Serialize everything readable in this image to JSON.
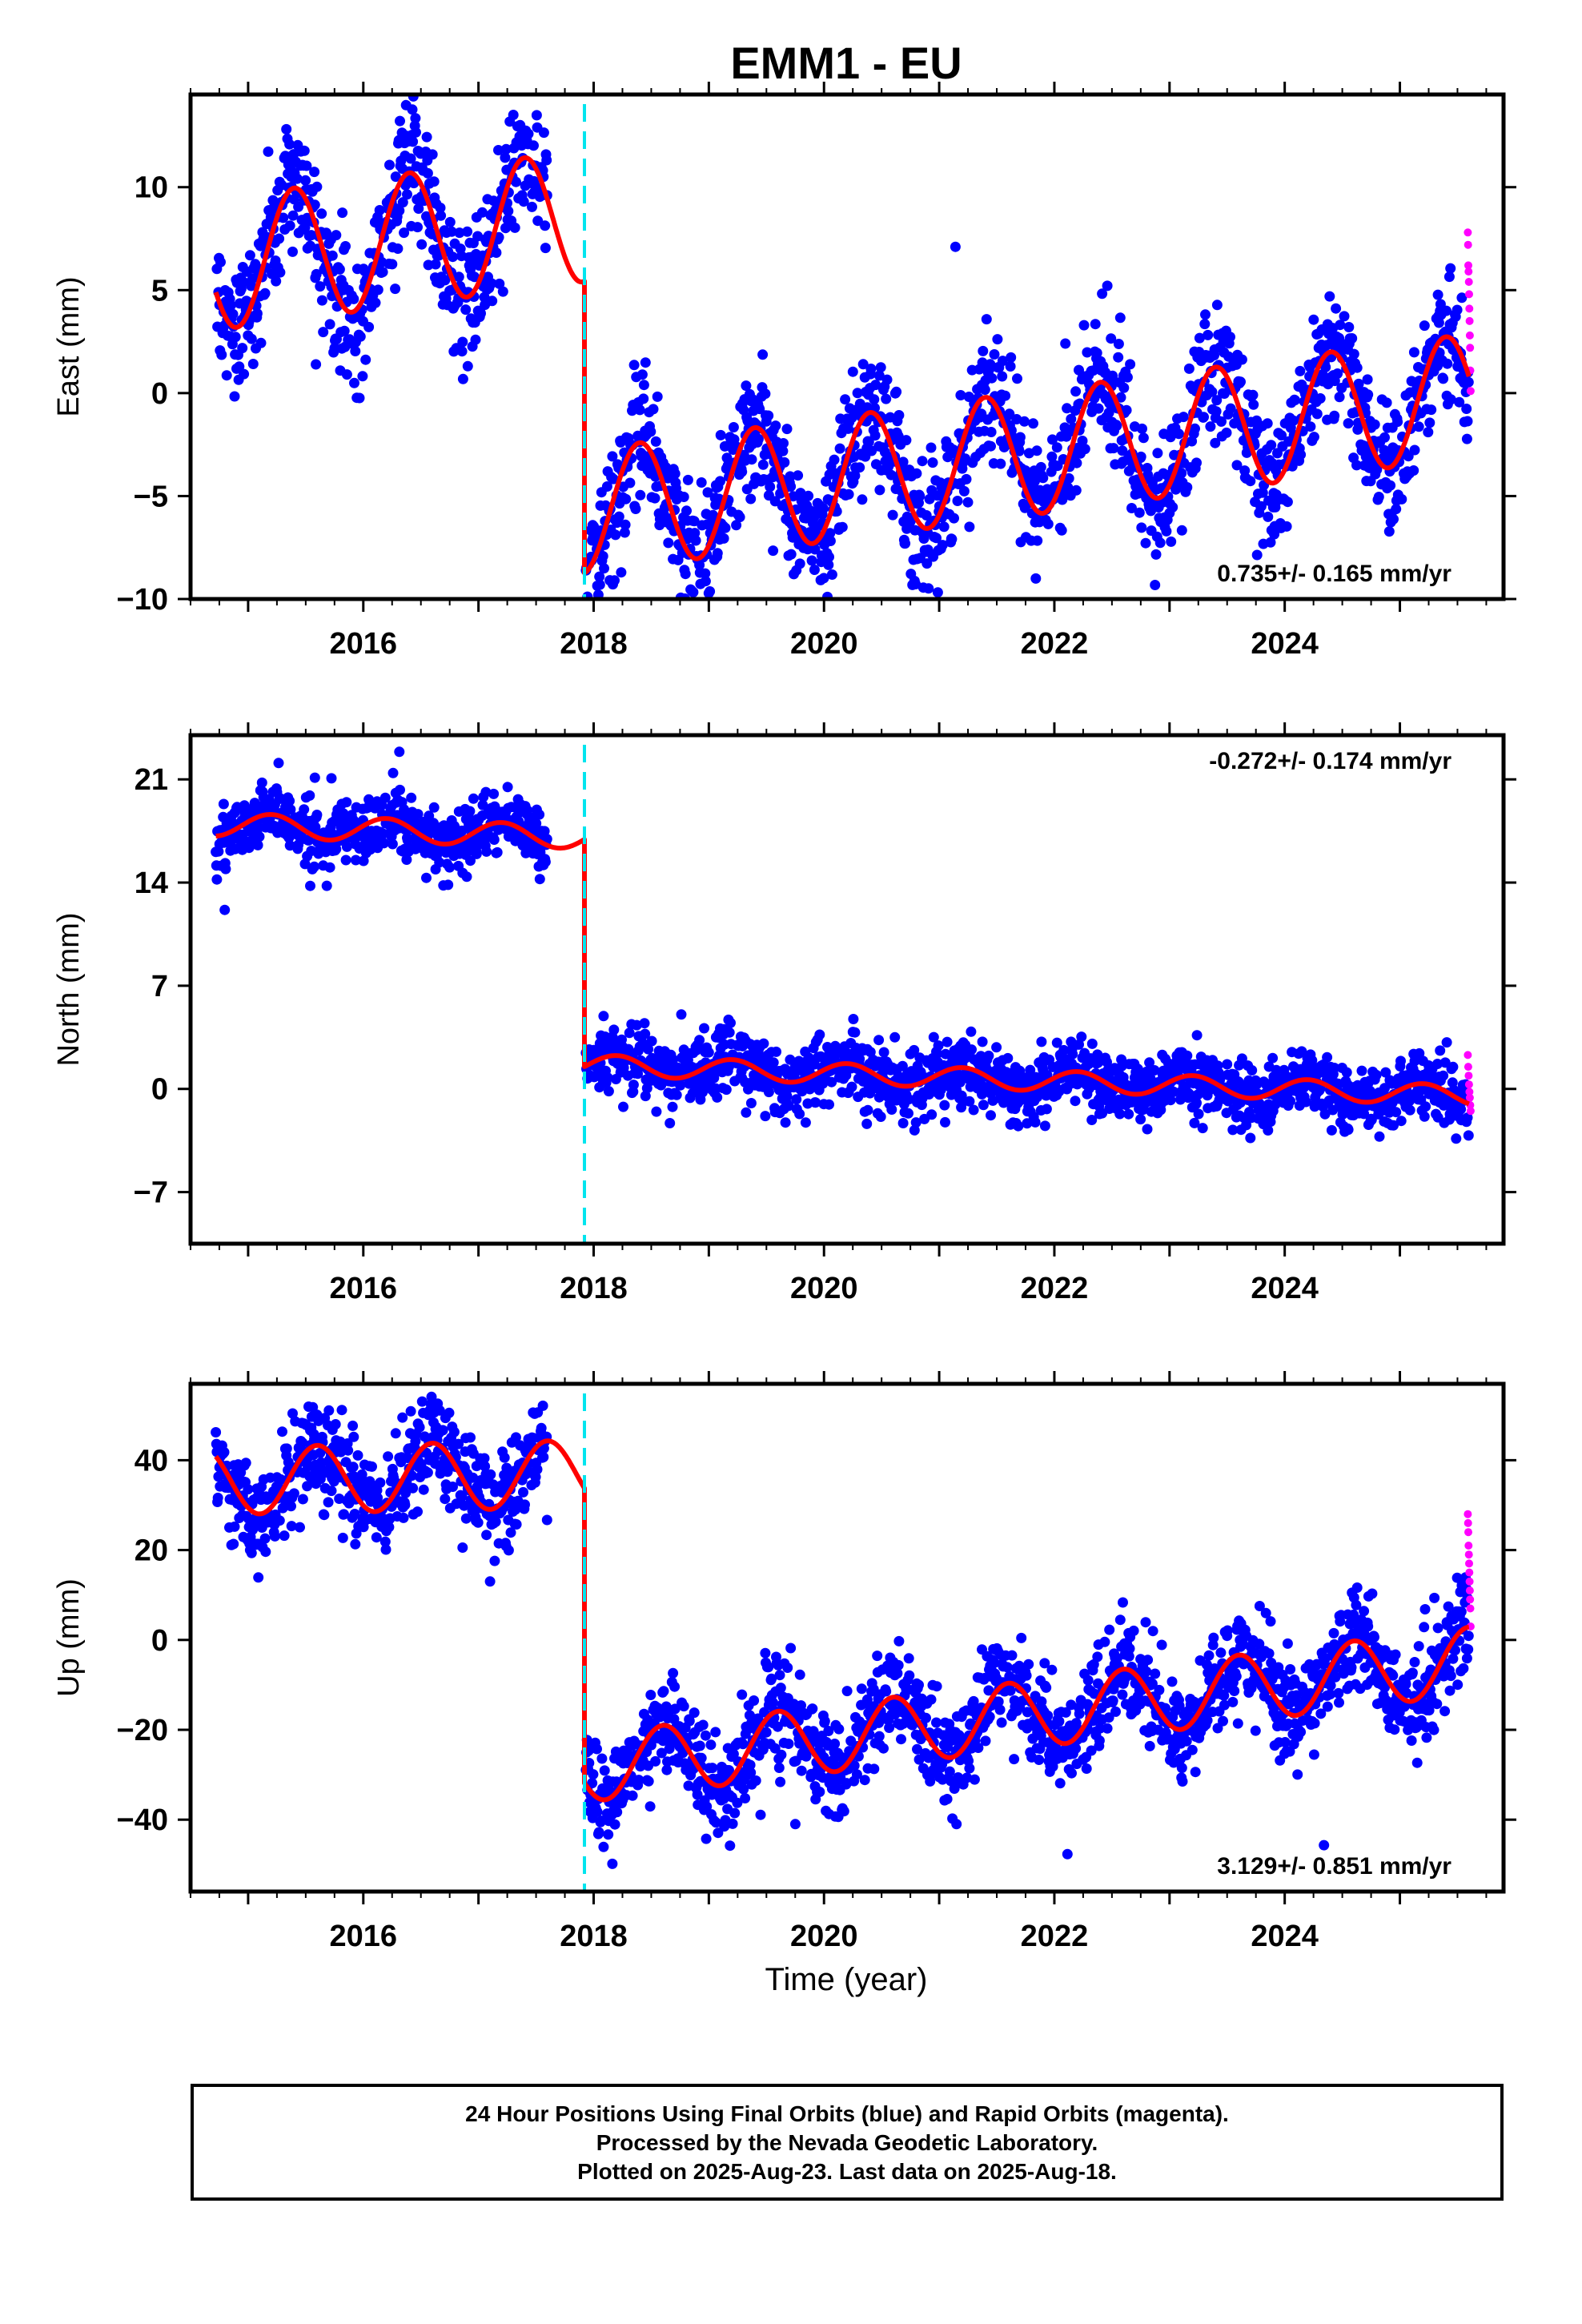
{
  "title": "EMM1 - EU",
  "xlabel": "Time (year)",
  "caption": {
    "line1": "24 Hour Positions Using Final Orbits (blue) and Rapid Orbits (magenta).",
    "line2": "Processed by the Nevada Geodetic Laboratory.",
    "line3": "Plotted on 2025-Aug-23. Last data on 2025-Aug-18."
  },
  "colors": {
    "final": "#0000ff",
    "rapid": "#ff00ff",
    "model": "#ff0000",
    "offset": "#00e5ee",
    "frame": "#000000"
  },
  "chart_data": [
    {
      "type": "scatter",
      "component": "east",
      "ylabel": "East (mm)",
      "xlim": [
        2014.5,
        2025.9
      ],
      "ylim": [
        -10,
        14.5
      ],
      "yticks": [
        -10,
        -5,
        0,
        5,
        10
      ],
      "xticks": [
        2016,
        2018,
        2020,
        2022,
        2024
      ],
      "rate_label": "0.735+/- 0.165 mm/yr",
      "rate_position": "bottom-right",
      "offset_epoch": 2017.92,
      "model": {
        "before": {
          "base": 7.2,
          "trend": 0.735,
          "amp": 3.2,
          "peak": 0.4,
          "start": 2014.72,
          "gap_from": 2017.6
        },
        "after": {
          "base": -3.5,
          "trend": 0.735,
          "amp": 3.0,
          "peak": 0.4,
          "end": 2025.6
        }
      },
      "noise": 1.6,
      "rapid": {
        "from": 2025.55,
        "to": 2025.63,
        "values": [
          7.8,
          7.2,
          6.2,
          5.9,
          5.4,
          4.8,
          4.1,
          3.5,
          2.8,
          2.2,
          1.1,
          0.1
        ]
      }
    },
    {
      "type": "scatter",
      "component": "north",
      "ylabel": "North (mm)",
      "xlim": [
        2014.5,
        2025.9
      ],
      "ylim": [
        -10.5,
        24
      ],
      "yticks": [
        -7,
        0,
        7,
        14,
        21
      ],
      "xticks": [
        2016,
        2018,
        2020,
        2022,
        2024
      ],
      "rate_label": "-0.272+/- 0.174 mm/yr",
      "rate_position": "top-right",
      "offset_epoch": 2017.92,
      "model": {
        "before": {
          "base": 17.6,
          "trend": -0.272,
          "amp": 0.8,
          "peak": 0.2,
          "start": 2014.72,
          "gap_from": 2017.6
        },
        "after": {
          "base": 0.8,
          "trend": -0.272,
          "amp": 0.7,
          "peak": 0.2,
          "end": 2025.6
        }
      },
      "noise": 1.1,
      "rapid": {
        "from": 2025.55,
        "to": 2025.63,
        "values": [
          2.3,
          1.5,
          0.9,
          0.3,
          -0.2,
          -0.6,
          -1.1,
          -1.5
        ]
      }
    },
    {
      "type": "scatter",
      "component": "up",
      "ylabel": "Up (mm)",
      "xlim": [
        2014.5,
        2025.9
      ],
      "ylim": [
        -56,
        57
      ],
      "yticks": [
        -40,
        -20,
        0,
        20,
        40
      ],
      "xticks": [
        2016,
        2018,
        2020,
        2022,
        2024
      ],
      "rate_label": "3.129+/- 0.851 mm/yr",
      "rate_position": "bottom-right",
      "offset_epoch": 2017.92,
      "model": {
        "before": {
          "base": 36,
          "trend": 0.5,
          "amp": 7.5,
          "peak": 0.6,
          "start": 2014.72,
          "gap_from": 2017.6
        },
        "after": {
          "base": -19,
          "trend": 3.129,
          "amp": 7.5,
          "peak": 0.6,
          "end": 2025.6
        }
      },
      "noise": 5.5,
      "rapid": {
        "from": 2025.55,
        "to": 2025.63,
        "values": [
          28,
          26,
          24,
          21,
          19,
          17,
          15,
          13,
          11,
          9,
          7,
          3
        ]
      }
    }
  ]
}
